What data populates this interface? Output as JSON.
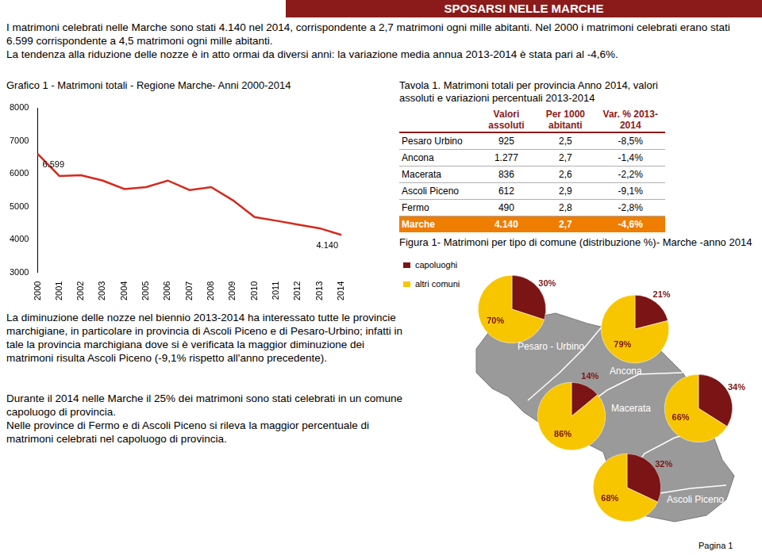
{
  "header": {
    "title": "SPOSARSI NELLE MARCHE"
  },
  "intro": [
    "I matrimoni celebrati nelle Marche sono stati 4.140 nel 2014, corrispondente a 2,7 matrimoni ogni mille abitanti. Nel 2000 i matrimoni celebrati erano stati 6.599 corrispondente a 4,5 matrimoni ogni mille abitanti.",
    "La tendenza alla riduzione delle nozze è in atto ormai da diversi anni: la variazione media annua 2013-2014 è stata pari al -4,6%."
  ],
  "chart_data": [
    {
      "type": "line",
      "title": "Grafico 1 - Matrimoni totali - Regione Marche- Anni 2000-2014",
      "categories": [
        "2000",
        "2001",
        "2002",
        "2003",
        "2004",
        "2005",
        "2006",
        "2007",
        "2008",
        "2009",
        "2010",
        "2011",
        "2012",
        "2013",
        "2014"
      ],
      "values": [
        6599,
        5930,
        5950,
        5790,
        5530,
        5590,
        5790,
        5500,
        5590,
        5190,
        4680,
        4570,
        4450,
        4340,
        4140
      ],
      "value_labels": [
        "6.599",
        null,
        null,
        null,
        null,
        null,
        null,
        null,
        null,
        null,
        null,
        null,
        null,
        null,
        "4.140"
      ],
      "color": "#d42a1e",
      "ylim": [
        3000,
        8000
      ],
      "yticks": [
        3000,
        4000,
        5000,
        6000,
        7000,
        8000
      ],
      "grid": false
    },
    {
      "type": "pie",
      "categories": [
        "capoluoghi",
        "altri comuni"
      ],
      "values": [
        30,
        70
      ],
      "value_labels": [
        "30%",
        "70%"
      ],
      "colors": [
        "#7b1414",
        "#f7c600"
      ],
      "legend": "top-left"
    },
    {
      "type": "pie",
      "categories": [
        "capoluoghi",
        "altri comuni"
      ],
      "values": [
        21,
        79
      ],
      "value_labels": [
        "21%",
        "79%"
      ],
      "colors": [
        "#7b1414",
        "#f7c600"
      ]
    },
    {
      "type": "pie",
      "categories": [
        "capoluoghi",
        "altri comuni"
      ],
      "values": [
        14,
        86
      ],
      "value_labels": [
        "14%",
        "86%"
      ],
      "colors": [
        "#7b1414",
        "#f7c600"
      ]
    },
    {
      "type": "pie",
      "categories": [
        "capoluoghi",
        "altri comuni"
      ],
      "values": [
        34,
        66
      ],
      "value_labels": [
        "34%",
        "66%"
      ],
      "colors": [
        "#7b1414",
        "#f7c600"
      ]
    },
    {
      "type": "pie",
      "categories": [
        "capoluoghi",
        "altri comuni"
      ],
      "values": [
        32,
        68
      ],
      "value_labels": [
        "32%",
        "68%"
      ],
      "colors": [
        "#7b1414",
        "#f7c600"
      ]
    }
  ],
  "table": {
    "title": "Tavola 1. Matrimoni totali per provincia Anno 2014, valori assoluti e variazioni percentuali 2013-2014",
    "header": [
      null,
      "Valori assoluti",
      "Per 1000 abitanti",
      "Var. % 2013-2014"
    ],
    "rows": [
      [
        "Pesaro Urbino",
        "925",
        "2,5",
        "-8,5%"
      ],
      [
        "Ancona",
        "1.277",
        "2,7",
        "-1,4%"
      ],
      [
        "Macerata",
        "836",
        "2,6",
        "-2,2%"
      ],
      [
        "Ascoli Piceno",
        "612",
        "2,9",
        "-9,1%"
      ],
      [
        "Fermo",
        "490",
        "2,8",
        "-2,8%"
      ],
      [
        "Marche",
        "4.140",
        "2,7",
        "-4,6%"
      ]
    ]
  },
  "figure": {
    "title": "Figura 1- Matrimoni per tipo di comune (distribuzione %)- Marche -anno 2014",
    "map_labels": [
      "Pesaro - Urbino",
      "Ancona",
      "Macerata",
      "Ascoli Piceno"
    ]
  },
  "texts": [
    [
      "La diminuzione delle nozze nel biennio 2013-2014 ha interessato tutte le provincie marchigiane, in particolare in provincia di Ascoli Piceno e di Pesaro-Urbino; infatti in tale la provincia marchigiana dove si è verificata la maggior diminuzione dei matrimoni risulta Ascoli Piceno (-9,1% rispetto all'anno precedente)."
    ],
    [
      "Durante il 2014 nelle Marche il 25% dei matrimoni sono stati celebrati in un comune capoluogo di provincia.",
      "Nelle province di Fermo e di Ascoli Piceno si rileva la maggior percentuale di matrimoni celebrati nel capoluogo di provincia."
    ]
  ],
  "footer": "Pagina 1"
}
